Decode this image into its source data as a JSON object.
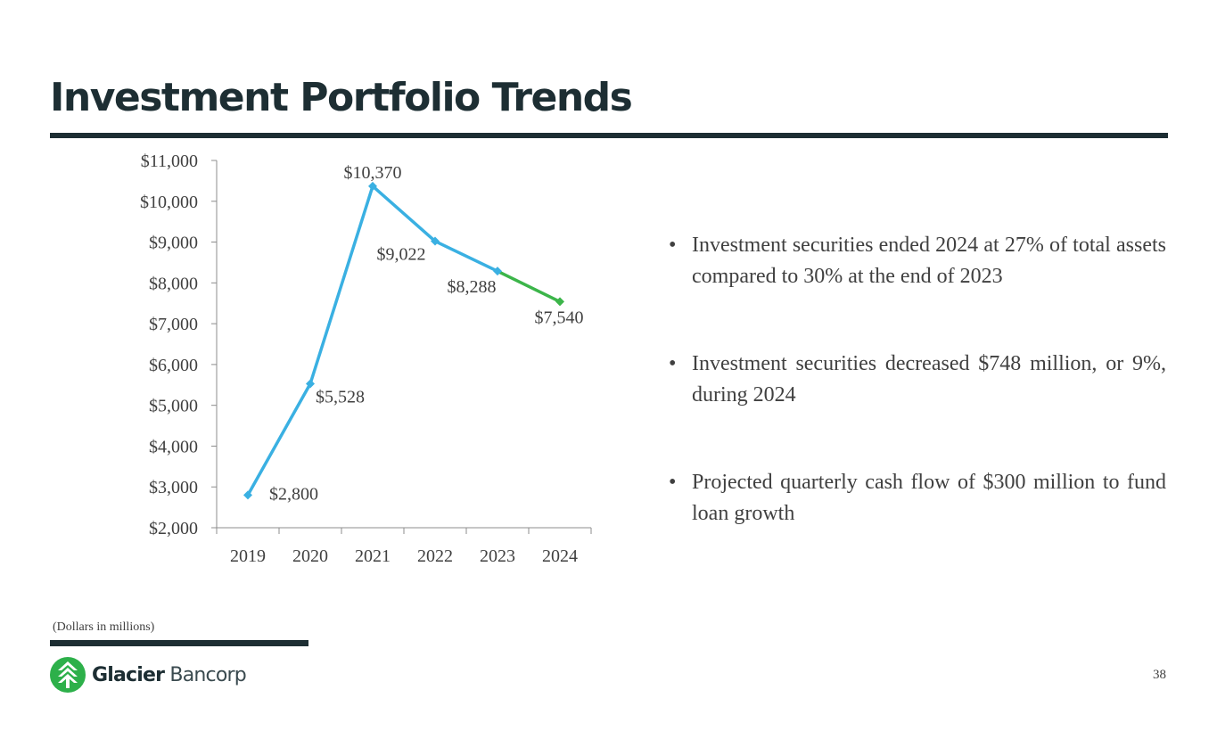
{
  "slide": {
    "title": "Investment Portfolio Trends",
    "footnote": "(Dollars in millions)",
    "page_number": "38"
  },
  "logo": {
    "brand_bold": "Glacier",
    "brand_light": "Bancorp",
    "icon": "glacier-logo-icon",
    "mark_color": "#2db04a"
  },
  "bullets": [
    "Investment securities ended 2024 at 27% of total assets compared to 30% at the end of 2023",
    "Investment securities decreased $748 million, or 9%, during 2024",
    "Projected quarterly cash flow of $300 million to fund loan growth"
  ],
  "bullet_glyph": "•",
  "colors": {
    "title": "#1d2e33",
    "line_main": "#3ab0e2",
    "line_last": "#3cb54a",
    "text": "#404040",
    "axis": "#8c8c8c"
  },
  "chart_data": {
    "type": "line",
    "title": "",
    "xlabel": "",
    "ylabel": "",
    "categories": [
      "2019",
      "2020",
      "2021",
      "2022",
      "2023",
      "2024"
    ],
    "values": [
      2800,
      5528,
      10370,
      9022,
      8288,
      7540
    ],
    "data_labels": [
      "$2,800",
      "$5,528",
      "$10,370",
      "$9,022",
      "$8,288",
      "$7,540"
    ],
    "ylim": [
      2000,
      11000
    ],
    "y_ticks": [
      2000,
      3000,
      4000,
      5000,
      6000,
      7000,
      8000,
      9000,
      10000,
      11000
    ],
    "y_tick_labels": [
      "$2,000",
      "$3,000",
      "$4,000",
      "$5,000",
      "$6,000",
      "$7,000",
      "$8,000",
      "$9,000",
      "$10,000",
      "$11,000"
    ],
    "highlight_last_segment": true,
    "grid": false,
    "legend": "none"
  }
}
